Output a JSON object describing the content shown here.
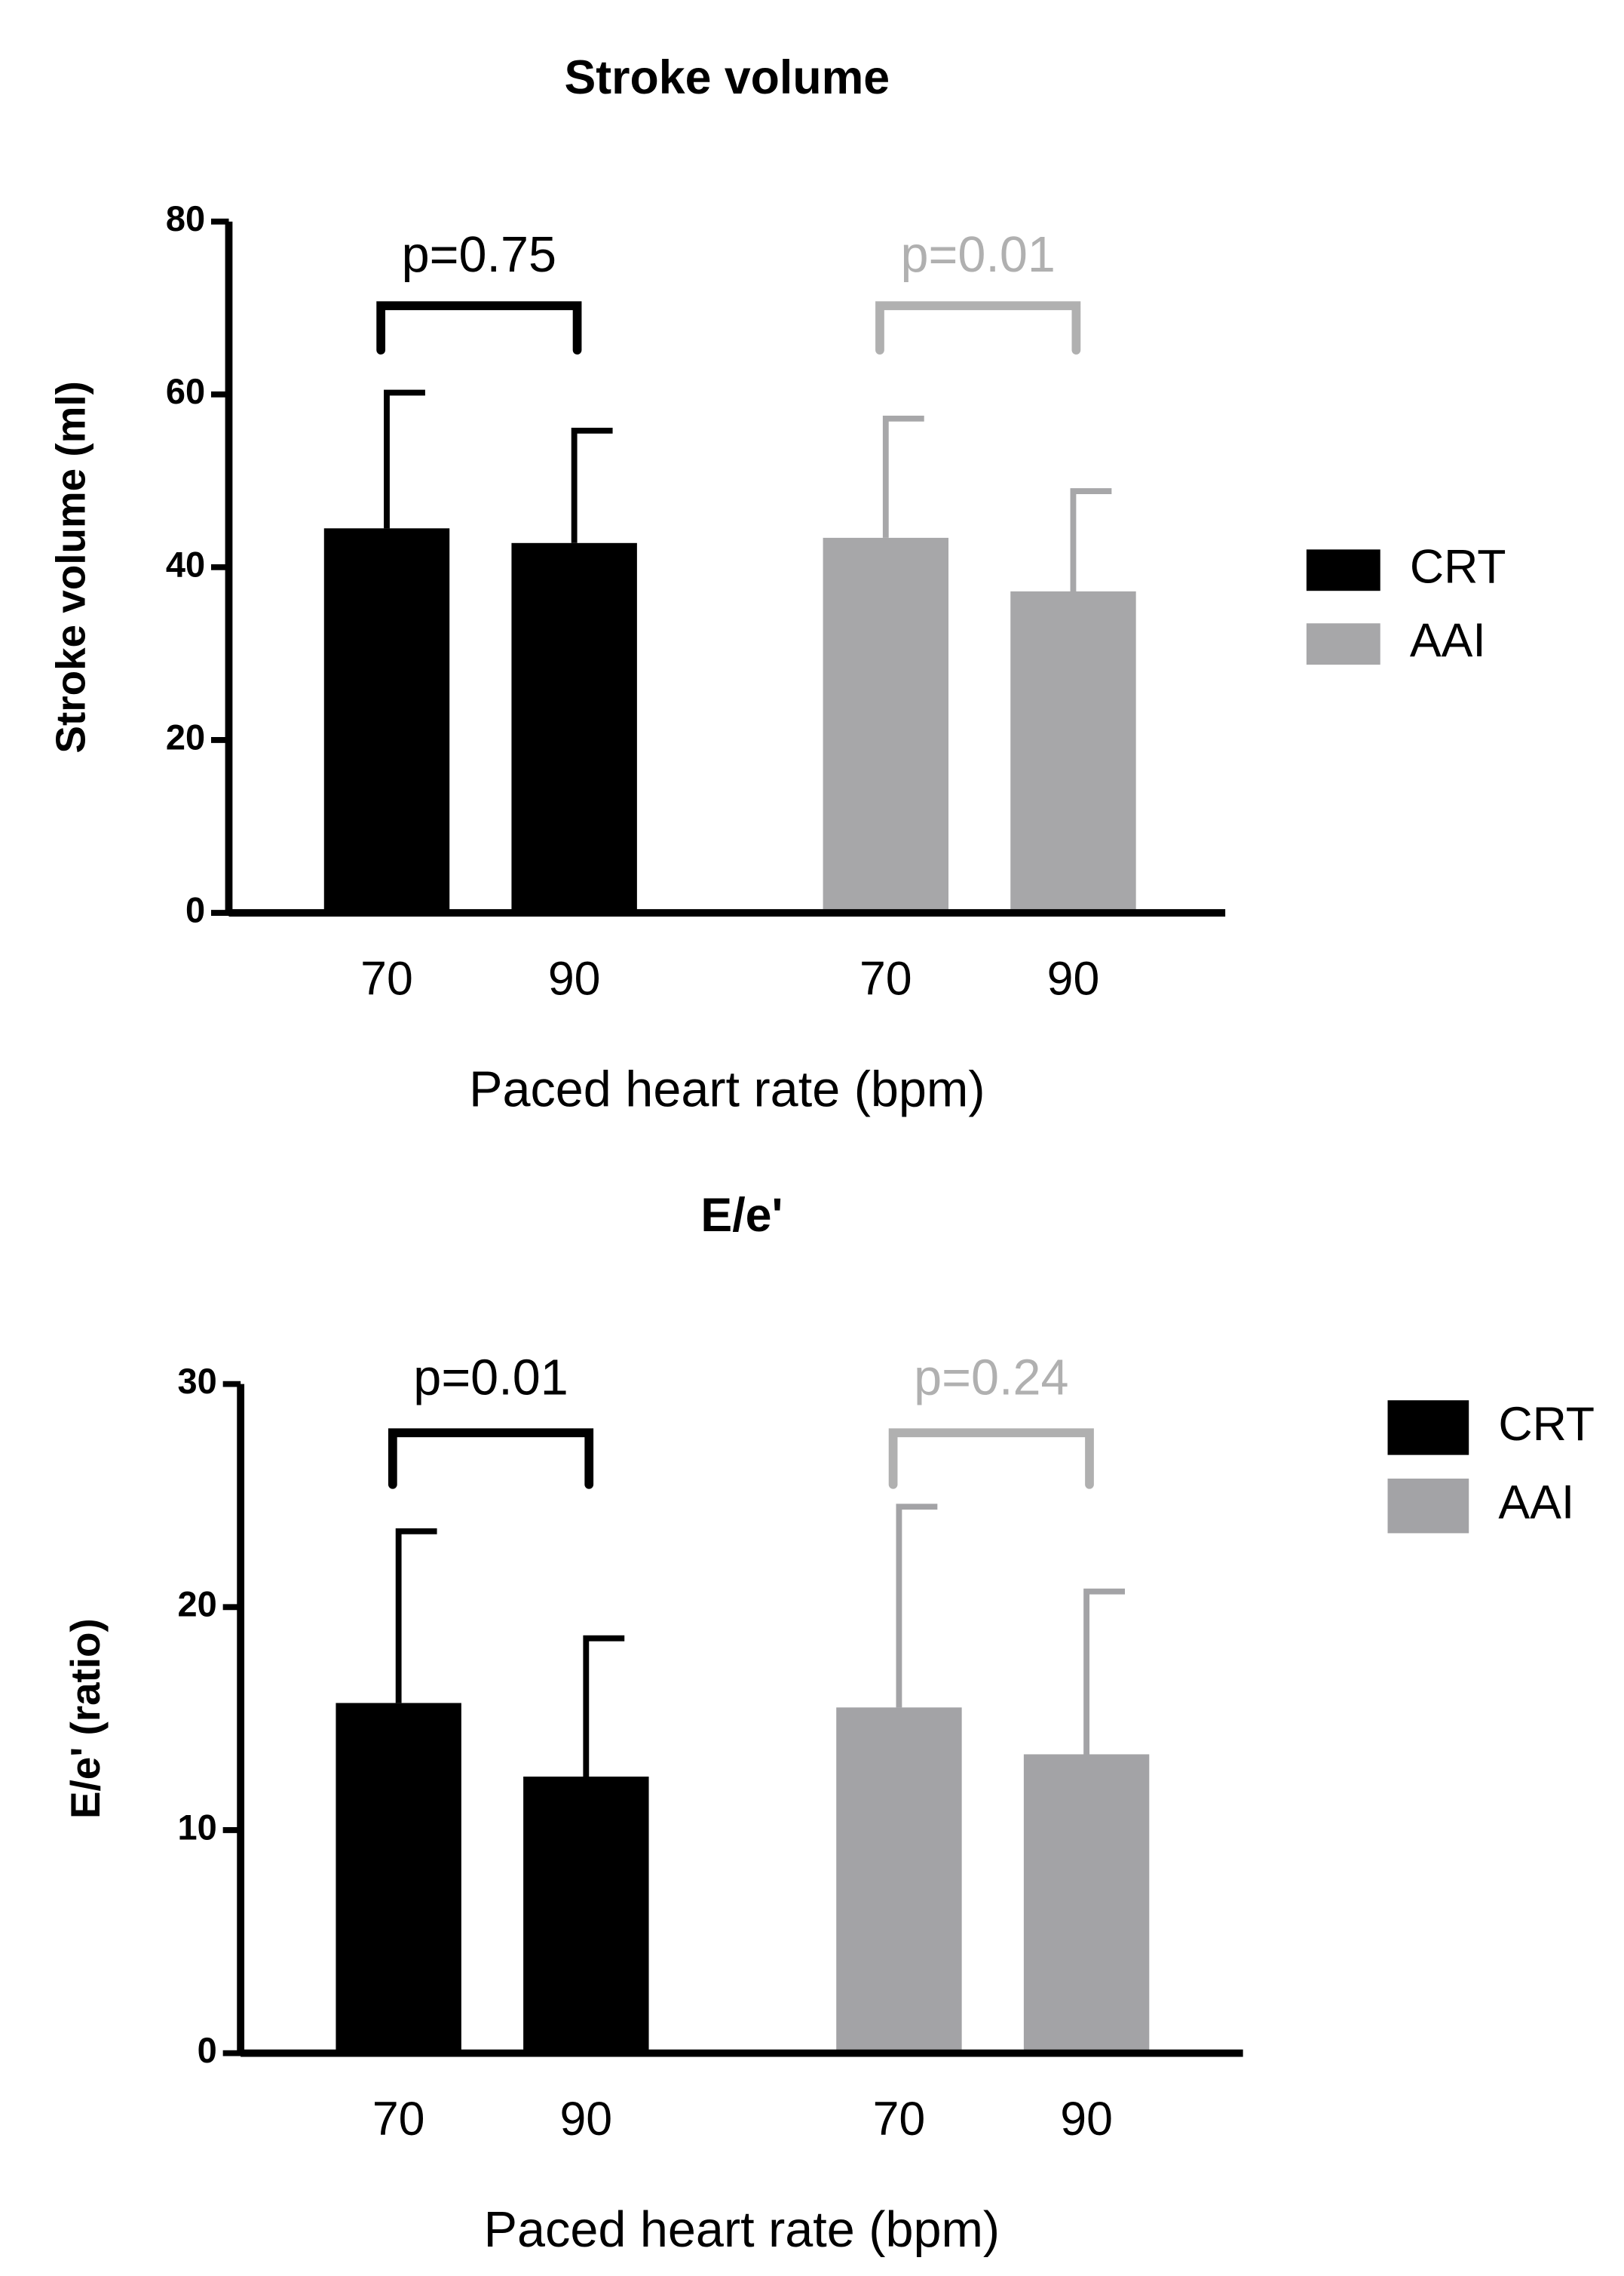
{
  "chart_data": [
    {
      "type": "bar",
      "title": "Stroke volume",
      "x_label": "Paced heart rate (bpm)",
      "y_label": "Stroke volume (ml)",
      "categories": [
        "70",
        "90"
      ],
      "series": [
        {
          "name": "CRT",
          "color": "#000000",
          "values": [
            44.5,
            42.8
          ],
          "errors": [
            15.7,
            13.0
          ],
          "annotation": "p=0.75"
        },
        {
          "name": "AAI",
          "color": "#a7a7a9",
          "values": [
            43.4,
            37.2
          ],
          "errors": [
            13.8,
            11.6
          ],
          "annotation": "p=0.01"
        }
      ],
      "ylim": [
        0,
        80
      ],
      "yticks": [
        0,
        20,
        40,
        60,
        80
      ],
      "legend": "right"
    },
    {
      "type": "bar",
      "title": "E/e'",
      "x_label": "Paced heart rate (bpm)",
      "y_label": "E/e' (ratio)",
      "categories": [
        "70",
        "90"
      ],
      "series": [
        {
          "name": "CRT",
          "color": "#000000",
          "values": [
            15.7,
            12.4
          ],
          "errors": [
            7.7,
            6.2
          ],
          "annotation": "p=0.01"
        },
        {
          "name": "AAI",
          "color": "#a3a3a6",
          "values": [
            15.5,
            13.4
          ],
          "errors": [
            9.0,
            7.3
          ],
          "annotation": "p=0.24"
        }
      ],
      "ylim": [
        0,
        30
      ],
      "yticks": [
        0,
        10,
        20,
        30
      ],
      "legend": "right"
    }
  ]
}
